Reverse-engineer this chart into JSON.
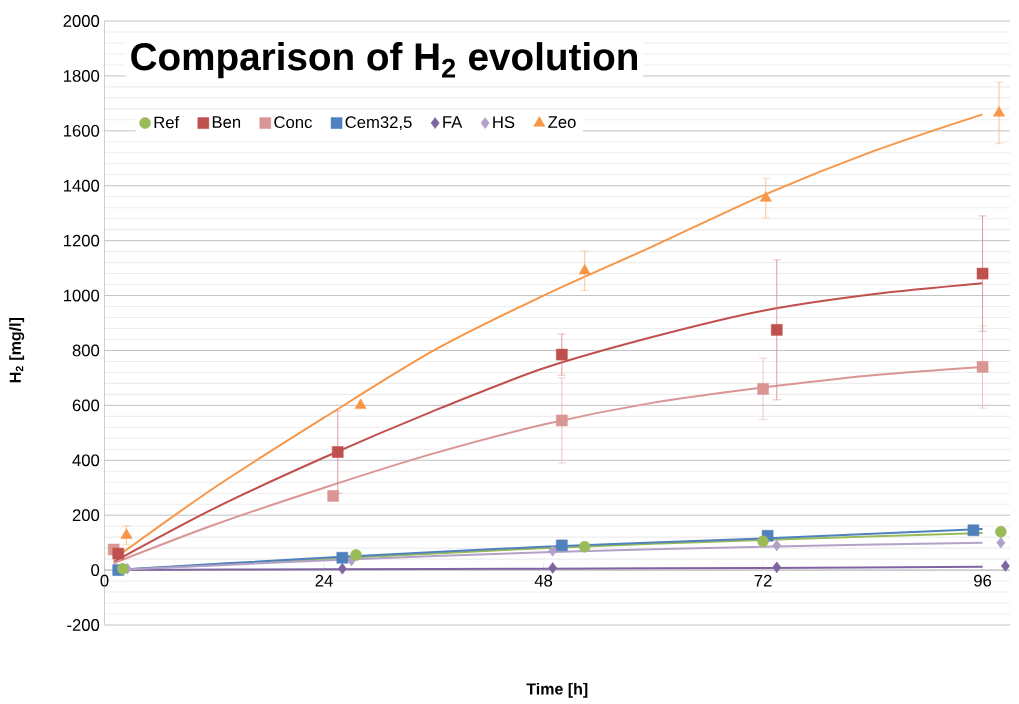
{
  "chart_data": {
    "type": "scatter",
    "title": "Comparison of H$_{2}$ evolution",
    "xlabel": "Time [h]",
    "ylabel": "H$_{2}$ [mg/l]",
    "xlim": [
      0,
      99
    ],
    "xticks": [
      0,
      24,
      48,
      72,
      96
    ],
    "ylim": [
      -200,
      2000
    ],
    "yticks": [
      -200,
      0,
      200,
      400,
      600,
      800,
      1000,
      1200,
      1400,
      1600,
      1800,
      2000
    ],
    "grid": "y",
    "legend": "top left",
    "series": [
      {
        "name": "Ref",
        "color": "#9bbb59",
        "marker": "circle",
        "x": [
          2,
          27.5,
          52.5,
          72,
          98
        ],
        "values": [
          5,
          55,
          85,
          105,
          140
        ]
      },
      {
        "name": "Ben",
        "color": "#c0504d",
        "marker": "square",
        "x": [
          1.5,
          25.5,
          50,
          73.5,
          96
        ],
        "values": [
          60,
          430,
          785,
          875,
          1080
        ],
        "errors": [
          null,
          150,
          75,
          255,
          210
        ]
      },
      {
        "name": "Conc",
        "color": "#d99694",
        "marker": "square",
        "x": [
          1,
          25,
          50,
          72,
          96
        ],
        "values": [
          75,
          270,
          545,
          660,
          740
        ],
        "errors": [
          null,
          null,
          155,
          112,
          150
        ]
      },
      {
        "name": "Cem32,5",
        "color": "#4f81bd",
        "marker": "square",
        "x": [
          1.5,
          26,
          50,
          72.5,
          95
        ],
        "values": [
          0,
          45,
          90,
          125,
          145
        ]
      },
      {
        "name": "FA",
        "color": "#8064a2",
        "marker": "diamond",
        "x": [
          null,
          26,
          49,
          73.5,
          98.5
        ],
        "values": [
          null,
          5,
          8,
          10,
          15
        ]
      },
      {
        "name": "HS",
        "color": "#b3a2c7",
        "marker": "diamond",
        "x": [
          2.5,
          27,
          49,
          73.5,
          98
        ],
        "values": [
          5,
          35,
          70,
          90,
          100
        ]
      },
      {
        "name": "Zeo",
        "color": "#f79646",
        "marker": "triangle",
        "x": [
          2.4,
          28,
          52.5,
          72.3,
          97.8
        ],
        "values": [
          127,
          600,
          1090,
          1355,
          1665
        ],
        "errors": [
          35,
          null,
          72,
          72,
          112
        ]
      },
      {
        "type": "line",
        "color": "#9bbb59",
        "marker": "none",
        "x": [
          1,
          24,
          48,
          72,
          96
        ],
        "values": [
          0,
          40,
          80,
          110,
          135
        ]
      },
      {
        "type": "line",
        "color": "#c0504d",
        "marker": "none",
        "x": [
          1,
          12,
          24,
          36,
          48,
          60,
          72,
          84,
          96
        ],
        "values": [
          30,
          225,
          410,
          580,
          735,
          850,
          945,
          1005,
          1045
        ]
      },
      {
        "type": "line",
        "color": "#d99694",
        "marker": "none",
        "x": [
          1,
          12,
          24,
          36,
          48,
          60,
          72,
          84,
          96
        ],
        "values": [
          25,
          165,
          300,
          425,
          530,
          610,
          665,
          710,
          740
        ]
      },
      {
        "type": "line",
        "color": "#4f81bd",
        "marker": "none",
        "x": [
          1,
          24,
          48,
          72,
          96
        ],
        "values": [
          0,
          45,
          85,
          115,
          150
        ]
      },
      {
        "type": "line",
        "color": "#8064a2",
        "marker": "none",
        "x": [
          1,
          24,
          48,
          72,
          96
        ],
        "values": [
          0,
          3,
          5,
          8,
          12
        ]
      },
      {
        "type": "line",
        "color": "#b3a2c7",
        "marker": "none",
        "x": [
          1,
          24,
          48,
          72,
          96
        ],
        "values": [
          0,
          35,
          65,
          85,
          100
        ]
      },
      {
        "type": "line",
        "color": "#f79646",
        "marker": "none",
        "x": [
          1,
          12,
          24,
          36,
          48,
          60,
          72,
          84,
          96
        ],
        "values": [
          40,
          300,
          555,
          800,
          1000,
          1180,
          1365,
          1525,
          1660
        ]
      }
    ]
  }
}
